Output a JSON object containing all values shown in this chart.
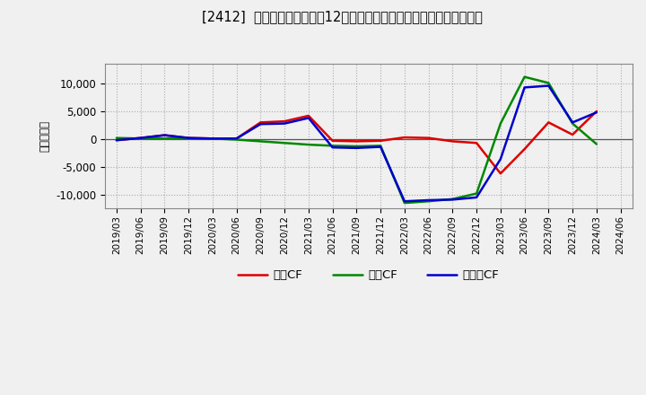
{
  "title": "[2412]  キャッシュフローの12か月移動合計の対前年同期増減額の推移",
  "ylabel": "（百万円）",
  "background_color": "#f0f0f0",
  "plot_bg_color": "#f0f0f0",
  "grid_color": "#999999",
  "ylim": [
    -12500,
    13500
  ],
  "yticks": [
    -10000,
    -5000,
    0,
    5000,
    10000
  ],
  "labels": {
    "eigyo": "営業CF",
    "toshi": "投資CF",
    "free": "フリーCF"
  },
  "colors": {
    "eigyo": "#dd0000",
    "toshi": "#008800",
    "free": "#0000cc"
  },
  "x_labels": [
    "2019/03",
    "2019/06",
    "2019/09",
    "2019/12",
    "2020/03",
    "2020/06",
    "2020/09",
    "2020/12",
    "2021/03",
    "2021/06",
    "2021/09",
    "2021/12",
    "2022/03",
    "2022/06",
    "2022/09",
    "2022/12",
    "2023/03",
    "2023/06",
    "2023/09",
    "2023/12",
    "2024/03",
    "2024/06"
  ],
  "eigyo": [
    -200,
    200,
    700,
    200,
    100,
    100,
    3000,
    3200,
    4200,
    -300,
    -400,
    -300,
    300,
    200,
    -400,
    -700,
    -6200,
    -1800,
    3000,
    800,
    5000,
    null
  ],
  "toshi": [
    200,
    100,
    100,
    100,
    100,
    -100,
    -400,
    -700,
    -1000,
    -1200,
    -1300,
    -1200,
    -11500,
    -11200,
    -10800,
    -9800,
    2800,
    11200,
    10100,
    2800,
    -900,
    null
  ],
  "free": [
    -200,
    200,
    700,
    200,
    100,
    100,
    2700,
    2800,
    3800,
    -1500,
    -1600,
    -1400,
    -11200,
    -11000,
    -10900,
    -10500,
    -3600,
    9300,
    9600,
    3000,
    4800,
    null
  ]
}
